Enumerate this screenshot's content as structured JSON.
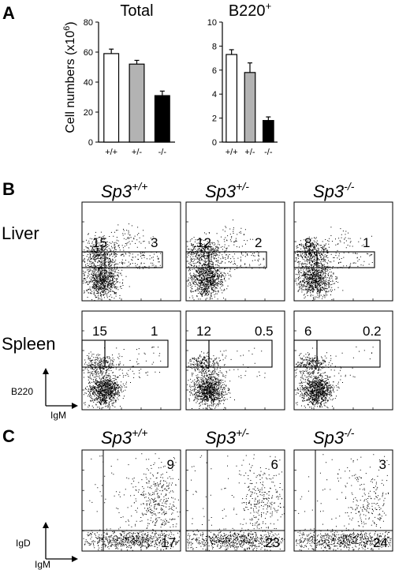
{
  "panel_a": {
    "letter": "A",
    "ylabel": "Cell numbers (x10",
    "ylabel_sup": "6",
    "ylabel_end": ")"
  },
  "panel_b": {
    "letter": "B",
    "col_prefix": "Sp3",
    "genotypes": [
      "+/+",
      "+/-",
      "-/-"
    ],
    "rows": [
      {
        "label": "Liver",
        "left": [
          "15",
          "12",
          "8"
        ],
        "right": [
          "3",
          "2",
          "1"
        ]
      },
      {
        "label": "Spleen",
        "left": [
          "15",
          "12",
          "6"
        ],
        "right": [
          "1",
          "0.5",
          "0.2"
        ]
      }
    ],
    "y_axis": "B220",
    "x_axis": "IgM"
  },
  "panel_c": {
    "letter": "C",
    "col_prefix": "Sp3",
    "genotypes": [
      "+/+",
      "+/-",
      "-/-"
    ],
    "upper": [
      "9",
      "6",
      "3"
    ],
    "lower": [
      "17",
      "23",
      "24"
    ],
    "y_axis": "IgD",
    "x_axis": "IgM"
  },
  "chart_data": [
    {
      "type": "bar",
      "title": "Total",
      "categories": [
        "+/+",
        "+/-",
        "-/-"
      ],
      "values": [
        59,
        52,
        31
      ],
      "errors": [
        3,
        2.5,
        3
      ],
      "colors": [
        "#ffffff",
        "#b3b3b3",
        "#000000"
      ],
      "ylim": [
        0,
        80
      ],
      "yticks": [
        0,
        20,
        40,
        60,
        80
      ]
    },
    {
      "type": "bar",
      "title": "B220",
      "title_sup": "+",
      "categories": [
        "+/+",
        "+/-",
        "-/-"
      ],
      "values": [
        7.3,
        5.8,
        1.8
      ],
      "errors": [
        0.4,
        0.8,
        0.3
      ],
      "colors": [
        "#ffffff",
        "#b3b3b3",
        "#000000"
      ],
      "ylim": [
        0,
        10
      ],
      "yticks": [
        0,
        2,
        4,
        6,
        8,
        10
      ]
    }
  ]
}
